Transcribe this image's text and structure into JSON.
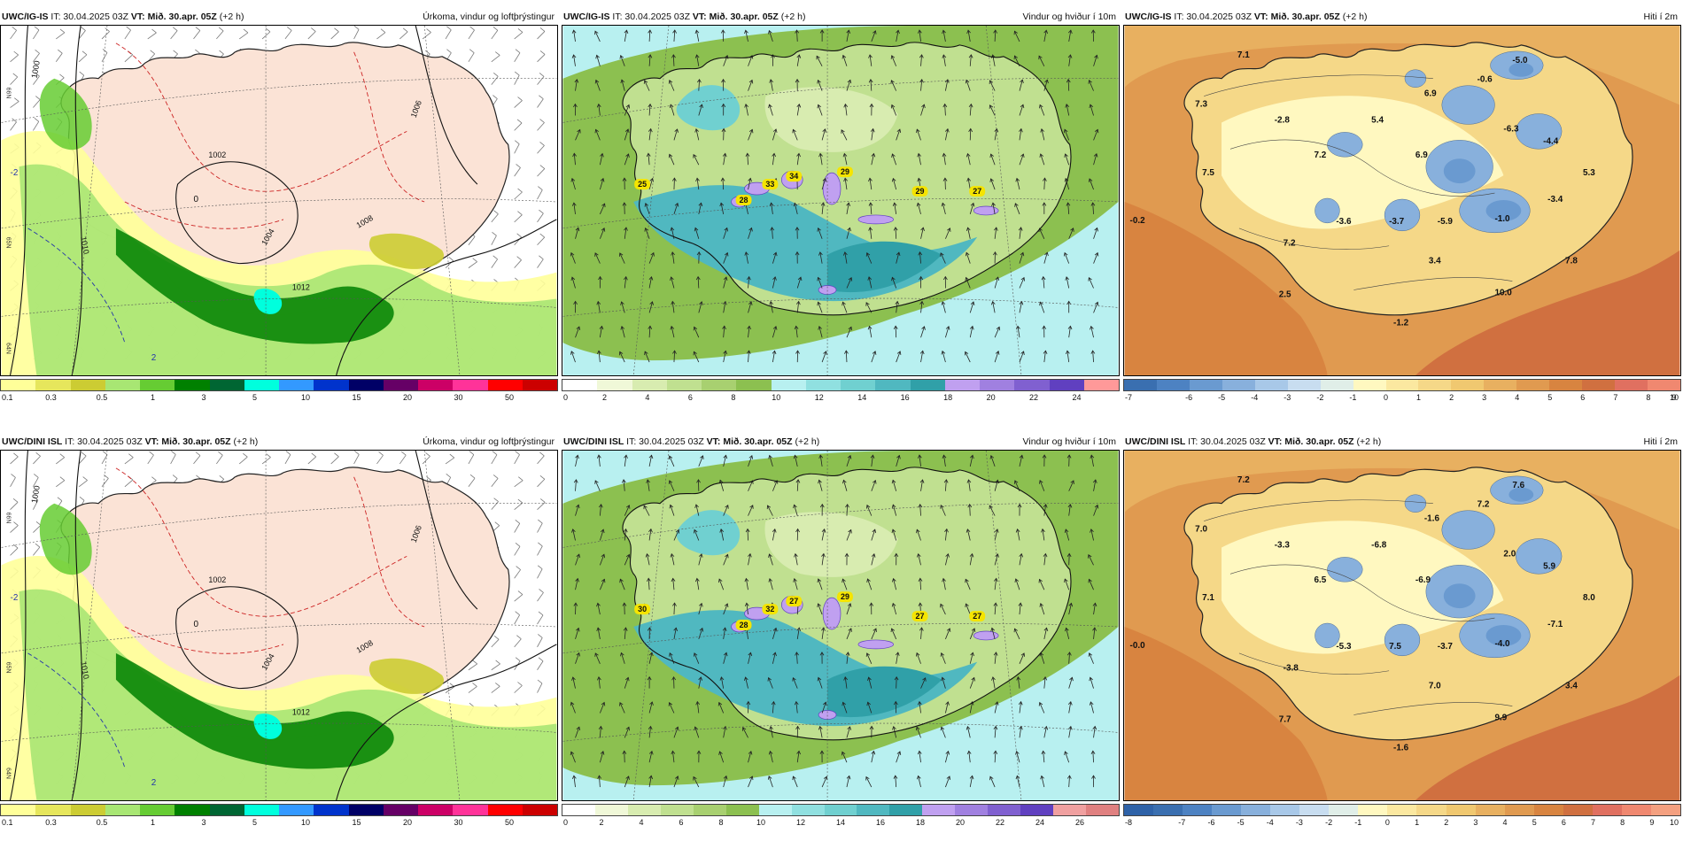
{
  "rows": [
    {
      "model": "UWC/IG-IS",
      "panels": [
        {
          "type": "precip",
          "model": "UWC/IG-IS",
          "it_label": "IT: 30.04.2025 03Z",
          "vt_prefix": "VT:",
          "vt_value": "Mið. 30.apr. 05Z",
          "offset": "(+2 h)",
          "product": "Úrkoma, vindur og loftþrýstingur",
          "colorbar": {
            "colors": [
              "#ffff99",
              "#e6e65c",
              "#cccc33",
              "#a8e673",
              "#66cc33",
              "#008000",
              "#006633",
              "#00ffdd",
              "#3399ff",
              "#0033cc",
              "#000066",
              "#660066",
              "#cc0066",
              "#ff3399",
              "#ff0000",
              "#cc0000"
            ],
            "ticks": [
              "0.1",
              "0.3",
              "0.5",
              "1",
              "3",
              "5",
              "10",
              "15",
              "20",
              "30",
              "50"
            ]
          },
          "isobar_labels": [
            "1000",
            "1002",
            "1004",
            "1006",
            "1008",
            "1010",
            "1012"
          ],
          "isotherm_labels": [
            "0",
            "-2",
            "2"
          ]
        },
        {
          "type": "wind",
          "model": "UWC/IG-IS",
          "it_label": "IT: 30.04.2025 03Z",
          "vt_prefix": "VT:",
          "vt_value": "Mið. 30.apr. 05Z",
          "offset": "(+2 h)",
          "product": "Vindur og hviður í 10m",
          "colorbar": {
            "colors": [
              "#ffffff",
              "#f0f8d8",
              "#d8ecb0",
              "#c0e090",
              "#a8d070",
              "#8cc050",
              "#b8f0f0",
              "#90e0e0",
              "#70d0d0",
              "#50b8c0",
              "#30a0a8",
              "#c0a0f0",
              "#a080e0",
              "#8060d0",
              "#6040c0",
              "#ff9999"
            ],
            "ticks": [
              "0",
              "2",
              "4",
              "6",
              "8",
              "10",
              "12",
              "14",
              "16",
              "18",
              "20",
              "22",
              "24"
            ]
          },
          "gust_labels": [
            "25",
            "28",
            "33",
            "34",
            "29",
            "29",
            "27"
          ]
        },
        {
          "type": "temp",
          "model": "UWC/IG-IS",
          "it_label": "IT: 30.04.2025 03Z",
          "vt_prefix": "VT:",
          "vt_value": "Mið. 30.apr. 05Z",
          "offset": "(+2 h)",
          "product": "Hiti í 2m",
          "colorbar": {
            "colors": [
              "#3a6fb0",
              "#4d82c2",
              "#6a9ad0",
              "#88b0dc",
              "#a8c8e8",
              "#c8ddf0",
              "#e0eee8",
              "#fff8c0",
              "#fbe8a0",
              "#f5d888",
              "#f0c870",
              "#e8b060",
              "#e09a50",
              "#d88440",
              "#d07040",
              "#e07060",
              "#f08870"
            ],
            "ticks": [
              "-7",
              "-6",
              "-5",
              "-4",
              "-3",
              "-2",
              "-1",
              "0",
              "1",
              "2",
              "3",
              "4",
              "5",
              "6",
              "7",
              "8",
              "9",
              "10"
            ]
          },
          "temps": [
            "7.1",
            "7.3",
            "-2.8",
            "7.5",
            "6.9",
            "5.4",
            "-0.6",
            "-5.0",
            "7.2",
            "6.9",
            "-6.3",
            "-4.4",
            "5.3",
            "-0.2",
            "-3.6",
            "-3.7",
            "-5.9",
            "-1.0",
            "-3.4",
            "7.2",
            "3.4",
            "7.8",
            "2.5",
            "10.0",
            "-1.2"
          ]
        }
      ]
    },
    {
      "model": "UWC/DINI ISL",
      "panels": [
        {
          "type": "precip",
          "model": "UWC/DINI ISL",
          "it_label": "IT: 30.04.2025 03Z",
          "vt_prefix": "VT:",
          "vt_value": "Mið. 30.apr. 05Z",
          "offset": "(+2 h)",
          "product": "Úrkoma, vindur og loftþrýstingur",
          "colorbar": {
            "colors": [
              "#ffff99",
              "#e6e65c",
              "#cccc33",
              "#a8e673",
              "#66cc33",
              "#008000",
              "#006633",
              "#00ffdd",
              "#3399ff",
              "#0033cc",
              "#000066",
              "#660066",
              "#cc0066",
              "#ff3399",
              "#ff0000",
              "#cc0000"
            ],
            "ticks": [
              "0.1",
              "0.3",
              "0.5",
              "1",
              "3",
              "5",
              "10",
              "15",
              "20",
              "30",
              "50"
            ]
          },
          "isobar_labels": [
            "1000",
            "1002",
            "1004",
            "1006",
            "1008",
            "1010",
            "1012"
          ],
          "isotherm_labels": [
            "0",
            "-2",
            "2"
          ]
        },
        {
          "type": "wind",
          "model": "UWC/DINI ISL",
          "it_label": "IT: 30.04.2025 03Z",
          "vt_prefix": "VT:",
          "vt_value": "Mið. 30.apr. 05Z",
          "offset": "(+2 h)",
          "product": "Vindur og hviður í 10m",
          "colorbar": {
            "colors": [
              "#ffffff",
              "#f0f8d8",
              "#d8ecb0",
              "#c0e090",
              "#a8d070",
              "#8cc050",
              "#b8f0f0",
              "#90e0e0",
              "#70d0d0",
              "#50b8c0",
              "#30a0a8",
              "#c0a0f0",
              "#a080e0",
              "#8060d0",
              "#6040c0",
              "#f0a0a0",
              "#e08080"
            ],
            "ticks": [
              "0",
              "2",
              "4",
              "6",
              "8",
              "10",
              "12",
              "14",
              "16",
              "18",
              "20",
              "22",
              "24",
              "26"
            ]
          },
          "gust_labels": [
            "30",
            "28",
            "32",
            "27",
            "29",
            "27",
            "27"
          ]
        },
        {
          "type": "temp",
          "model": "UWC/DINI ISL",
          "it_label": "IT: 30.04.2025 03Z",
          "vt_prefix": "VT:",
          "vt_value": "Mið. 30.apr. 05Z",
          "offset": "(+2 h)",
          "product": "Hiti í 2m",
          "colorbar": {
            "colors": [
              "#2e62a8",
              "#3a6fb0",
              "#4d82c2",
              "#6a9ad0",
              "#88b0dc",
              "#a8c8e8",
              "#c8ddf0",
              "#e0eee8",
              "#fff8c0",
              "#fbe8a0",
              "#f5d888",
              "#f0c870",
              "#e8b060",
              "#e09a50",
              "#d88440",
              "#d07040",
              "#e07060",
              "#f08870",
              "#f4a080"
            ],
            "ticks": [
              "-8",
              "-7",
              "-6",
              "-5",
              "-4",
              "-3",
              "-2",
              "-1",
              "0",
              "1",
              "2",
              "3",
              "4",
              "5",
              "6",
              "7",
              "8",
              "9",
              "10"
            ]
          },
          "temps": [
            "7.2",
            "7.0",
            "-3.3",
            "7.1",
            "-1.6",
            "-6.8",
            "7.2",
            "7.6",
            "6.5",
            "-6.9",
            "2.0",
            "5.9",
            "8.0",
            "-0.0",
            "-5.3",
            "7.5",
            "-3.7",
            "-4.0",
            "-7.1",
            "-3.8",
            "7.0",
            "3.4",
            "7.7",
            "9.9",
            "-1.6"
          ]
        }
      ]
    }
  ]
}
